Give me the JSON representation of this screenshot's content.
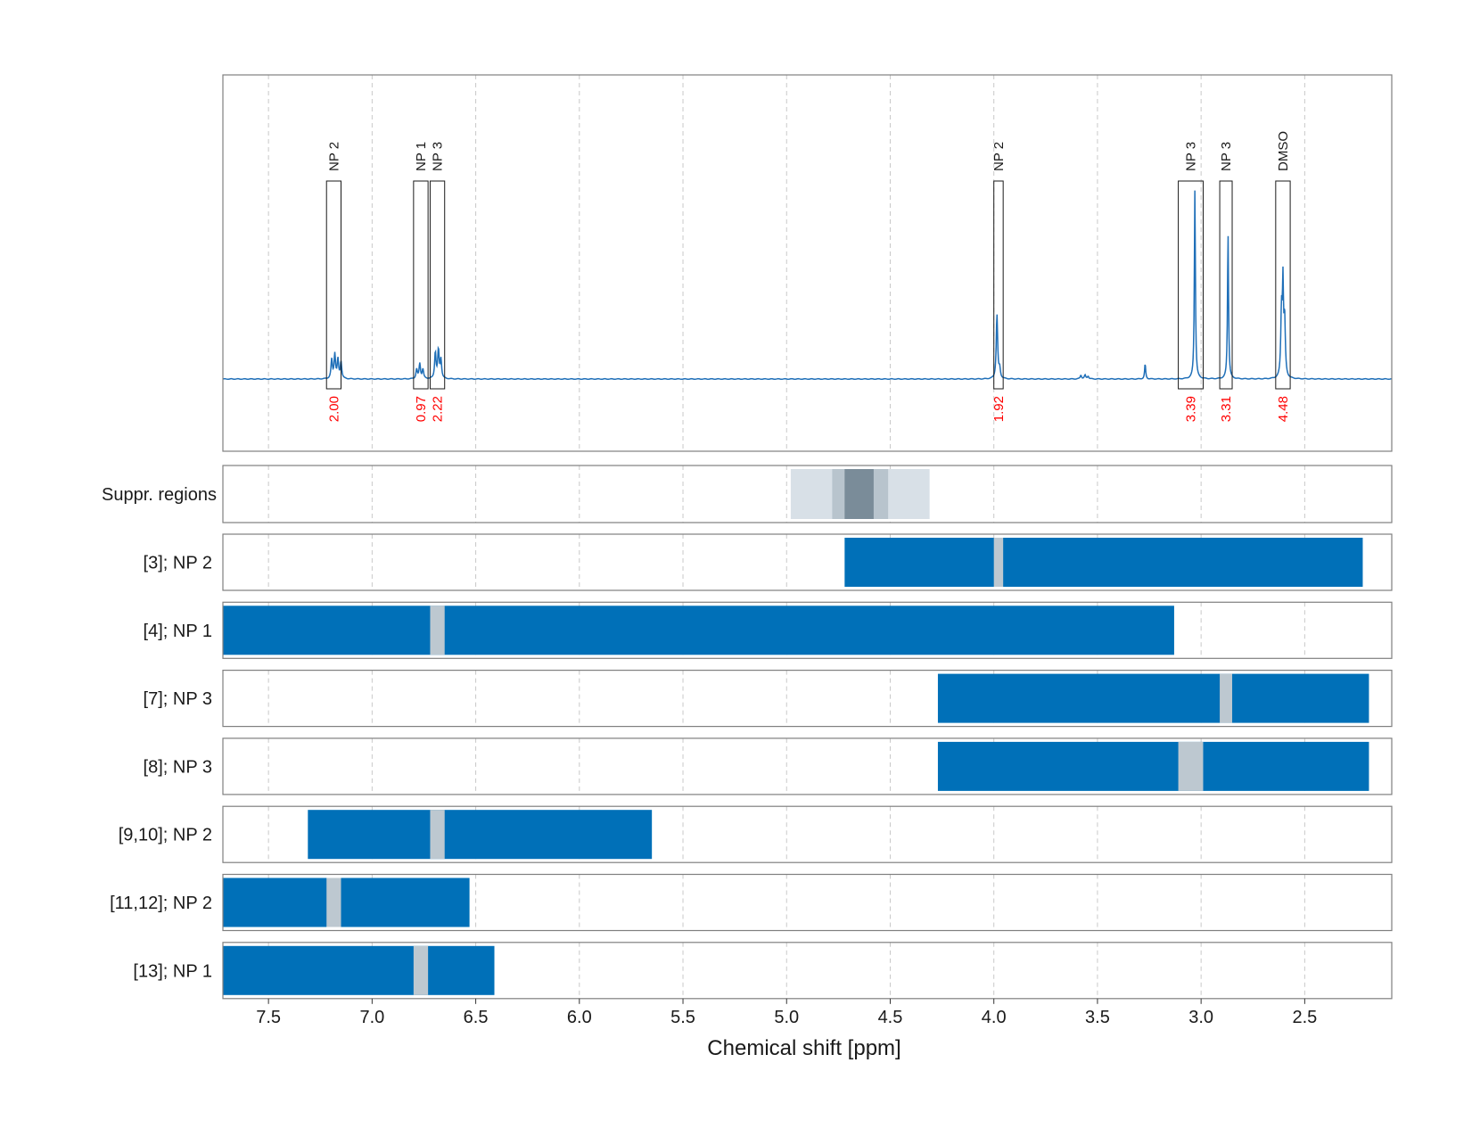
{
  "chart_data": {
    "type": "line",
    "xlabel": "Chemical shift [ppm]",
    "xlim": [
      7.72,
      2.08
    ],
    "x_reversed": true,
    "x_ticks": [
      7.5,
      7.0,
      6.5,
      6.0,
      5.5,
      5.0,
      4.5,
      4.0,
      3.5,
      3.0,
      2.5
    ],
    "x_tick_labels": [
      "7.5",
      "7.0",
      "6.5",
      "6.0",
      "5.5",
      "5.0",
      "4.5",
      "4.0",
      "3.5",
      "3.0",
      "2.5"
    ],
    "grid": "vertical dashed",
    "spectrum": {
      "color": "#1f6fb8",
      "peaks": [
        {
          "ppm": 7.195,
          "height": 0.1,
          "width": 0.004
        },
        {
          "ppm": 7.18,
          "height": 0.13,
          "width": 0.004
        },
        {
          "ppm": 7.165,
          "height": 0.1,
          "width": 0.004
        },
        {
          "ppm": 7.15,
          "height": 0.09,
          "width": 0.004
        },
        {
          "ppm": 6.785,
          "height": 0.05,
          "width": 0.004
        },
        {
          "ppm": 6.77,
          "height": 0.08,
          "width": 0.004
        },
        {
          "ppm": 6.755,
          "height": 0.05,
          "width": 0.004
        },
        {
          "ppm": 6.695,
          "height": 0.14,
          "width": 0.004
        },
        {
          "ppm": 6.68,
          "height": 0.15,
          "width": 0.004
        },
        {
          "ppm": 6.668,
          "height": 0.1,
          "width": 0.004
        },
        {
          "ppm": 3.985,
          "height": 0.34,
          "width": 0.004
        },
        {
          "ppm": 3.972,
          "height": 0.05,
          "width": 0.004
        },
        {
          "ppm": 3.58,
          "height": 0.02,
          "width": 0.004
        },
        {
          "ppm": 3.56,
          "height": 0.02,
          "width": 0.004
        },
        {
          "ppm": 3.545,
          "height": 0.015,
          "width": 0.004
        },
        {
          "ppm": 3.27,
          "height": 0.08,
          "width": 0.003
        },
        {
          "ppm": 3.03,
          "height": 1.0,
          "width": 0.003
        },
        {
          "ppm": 2.87,
          "height": 0.77,
          "width": 0.003
        },
        {
          "ppm": 2.612,
          "height": 0.35,
          "width": 0.004
        },
        {
          "ppm": 2.605,
          "height": 0.45,
          "width": 0.003
        },
        {
          "ppm": 2.597,
          "height": 0.3,
          "width": 0.004
        }
      ]
    },
    "peak_annotations": [
      {
        "label": "NP 2",
        "from": 7.22,
        "to": 7.15,
        "integral": "2.00"
      },
      {
        "label": "NP 1",
        "from": 6.8,
        "to": 6.73,
        "integral": "0.97"
      },
      {
        "label": "NP 3",
        "from": 6.72,
        "to": 6.65,
        "integral": "2.22"
      },
      {
        "label": "NP 2",
        "from": 4.0,
        "to": 3.955,
        "integral": "1.92"
      },
      {
        "label": "NP 3",
        "from": 3.11,
        "to": 2.99,
        "integral": "3.39"
      },
      {
        "label": "NP 3",
        "from": 2.91,
        "to": 2.85,
        "integral": "3.31"
      },
      {
        "label": "DMSO",
        "from": 2.64,
        "to": 2.57,
        "integral": "4.48"
      }
    ],
    "suppression_regions": {
      "label": "Suppr. regions",
      "bands": [
        {
          "from": 4.98,
          "to": 4.31,
          "shade": "light"
        },
        {
          "from": 4.78,
          "to": 4.51,
          "shade": "medium"
        },
        {
          "from": 4.72,
          "to": 4.58,
          "shade": "dark"
        }
      ],
      "colors": {
        "light": "#d8e0e7",
        "medium": "#b8c4cd",
        "dark": "#7a8c99"
      }
    },
    "fit_rows": [
      {
        "label": "[3]; NP 2",
        "from": 4.72,
        "to": 2.22,
        "gap_from": 4.0,
        "gap_to": 3.955
      },
      {
        "label": "[4]; NP 1",
        "from": 7.72,
        "to": 3.13,
        "gap_from": 6.72,
        "gap_to": 6.65
      },
      {
        "label": "[7]; NP 3",
        "from": 4.27,
        "to": 2.19,
        "gap_from": 2.91,
        "gap_to": 2.85
      },
      {
        "label": "[8]; NP 3",
        "from": 4.27,
        "to": 2.19,
        "gap_from": 3.11,
        "gap_to": 2.99
      },
      {
        "label": "[9,10]; NP 2",
        "from": 7.31,
        "to": 5.65,
        "gap_from": 6.72,
        "gap_to": 6.65
      },
      {
        "label": "[11,12]; NP 2",
        "from": 7.72,
        "to": 6.53,
        "gap_from": 7.22,
        "gap_to": 7.15
      },
      {
        "label": "[13]; NP 1",
        "from": 7.72,
        "to": 6.41,
        "gap_from": 6.8,
        "gap_to": 6.73
      }
    ],
    "fit_color": "#0070b8",
    "gap_color": "#bdc8d0"
  }
}
